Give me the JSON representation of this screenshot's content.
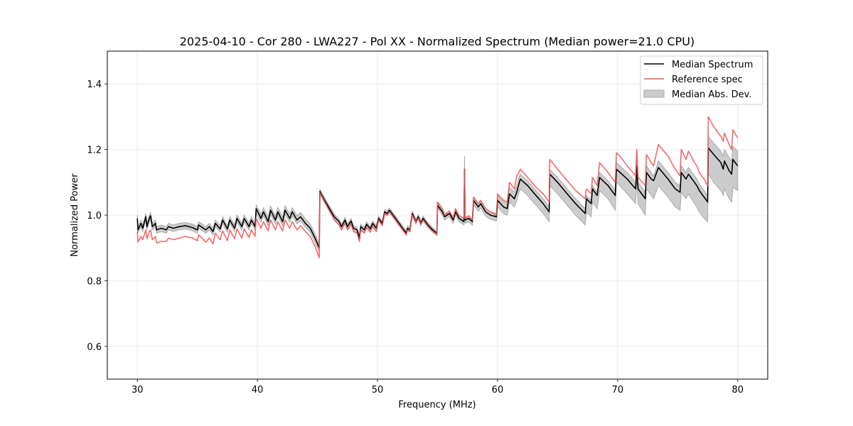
{
  "chart_data": {
    "type": "line",
    "title": "2025-04-10 - Cor 280 - LWA227 - Pol XX - Normalized Spectrum (Median power=21.0 CPU)",
    "xlabel": "Frequency (MHz)",
    "ylabel": "Normalized Power",
    "xlim": [
      27.5,
      82.5
    ],
    "ylim": [
      0.5,
      1.5
    ],
    "xticks": [
      30,
      40,
      50,
      60,
      70,
      80
    ],
    "xtick_labels": [
      "30",
      "40",
      "50",
      "60",
      "70",
      "80"
    ],
    "yticks": [
      0.6,
      0.8,
      1.0,
      1.2,
      1.4
    ],
    "ytick_labels": [
      "0.6",
      "0.8",
      "1.0",
      "1.2",
      "1.4"
    ],
    "grid": true,
    "legend_position": "top-right",
    "legend": [
      {
        "label": "Median Spectrum",
        "kind": "line",
        "color": "#000000"
      },
      {
        "label": "Reference spec",
        "kind": "line",
        "color": "#f05a5a"
      },
      {
        "label": "Median Abs. Dev.",
        "kind": "band",
        "color": "#bfbfbf"
      }
    ],
    "point_columns": [
      "frequency_mhz",
      "median",
      "reference",
      "mad_lower",
      "mad_upper"
    ],
    "points": [
      [
        30.0,
        0.99,
        0.95,
        0.98,
        1.0
      ],
      [
        30.05,
        0.955,
        0.918,
        0.945,
        0.965
      ],
      [
        30.3,
        0.975,
        0.935,
        0.965,
        0.985
      ],
      [
        30.45,
        0.96,
        0.925,
        0.95,
        0.97
      ],
      [
        30.7,
        0.995,
        0.955,
        0.985,
        1.005
      ],
      [
        30.8,
        0.965,
        0.928,
        0.955,
        0.975
      ],
      [
        31.0,
        0.99,
        0.95,
        0.98,
        1.0
      ],
      [
        31.1,
        0.998,
        0.955,
        0.988,
        1.008
      ],
      [
        31.25,
        0.965,
        0.925,
        0.955,
        0.975
      ],
      [
        31.5,
        0.975,
        0.935,
        0.965,
        0.985
      ],
      [
        31.6,
        0.955,
        0.915,
        0.945,
        0.965
      ],
      [
        32.0,
        0.96,
        0.92,
        0.95,
        0.97
      ],
      [
        32.4,
        0.955,
        0.92,
        0.945,
        0.965
      ],
      [
        32.6,
        0.965,
        0.93,
        0.955,
        0.975
      ],
      [
        33.0,
        0.96,
        0.925,
        0.95,
        0.97
      ],
      [
        33.5,
        0.965,
        0.93,
        0.955,
        0.975
      ],
      [
        34.0,
        0.968,
        0.935,
        0.958,
        0.978
      ],
      [
        34.6,
        0.962,
        0.93,
        0.952,
        0.972
      ],
      [
        35.0,
        0.955,
        0.922,
        0.945,
        0.965
      ],
      [
        35.1,
        0.97,
        0.94,
        0.96,
        0.98
      ],
      [
        35.7,
        0.955,
        0.918,
        0.945,
        0.965
      ],
      [
        36.0,
        0.965,
        0.93,
        0.955,
        0.975
      ],
      [
        36.3,
        0.95,
        0.912,
        0.94,
        0.96
      ],
      [
        36.5,
        0.975,
        0.945,
        0.965,
        0.985
      ],
      [
        36.9,
        0.958,
        0.925,
        0.948,
        0.968
      ],
      [
        37.1,
        0.985,
        0.952,
        0.975,
        0.995
      ],
      [
        37.5,
        0.958,
        0.922,
        0.948,
        0.968
      ],
      [
        37.7,
        0.985,
        0.955,
        0.975,
        0.995
      ],
      [
        38.1,
        0.96,
        0.928,
        0.95,
        0.97
      ],
      [
        38.3,
        0.99,
        0.958,
        0.98,
        1.0
      ],
      [
        38.7,
        0.965,
        0.93,
        0.955,
        0.975
      ],
      [
        38.9,
        0.99,
        0.958,
        0.98,
        1.0
      ],
      [
        39.3,
        0.965,
        0.932,
        0.955,
        0.975
      ],
      [
        39.5,
        0.985,
        0.955,
        0.975,
        0.995
      ],
      [
        39.8,
        0.965,
        0.935,
        0.955,
        0.975
      ],
      [
        39.9,
        1.02,
        0.99,
        1.005,
        1.03
      ],
      [
        40.3,
        0.99,
        0.96,
        0.978,
        1.003
      ],
      [
        40.5,
        1.01,
        0.98,
        0.998,
        1.023
      ],
      [
        40.9,
        0.98,
        0.952,
        0.968,
        0.993
      ],
      [
        41.1,
        1.015,
        0.985,
        1.003,
        1.028
      ],
      [
        41.5,
        0.985,
        0.955,
        0.973,
        0.998
      ],
      [
        41.7,
        1.01,
        0.98,
        0.998,
        1.023
      ],
      [
        42.1,
        0.98,
        0.952,
        0.968,
        0.993
      ],
      [
        42.3,
        1.015,
        0.985,
        1.003,
        1.028
      ],
      [
        42.7,
        0.99,
        0.96,
        0.978,
        1.003
      ],
      [
        42.9,
        1.01,
        0.98,
        0.998,
        1.023
      ],
      [
        43.3,
        0.985,
        0.955,
        0.973,
        0.998
      ],
      [
        43.6,
        0.995,
        0.968,
        0.983,
        1.008
      ],
      [
        44.0,
        0.975,
        0.95,
        0.963,
        0.988
      ],
      [
        44.4,
        0.96,
        0.935,
        0.948,
        0.973
      ],
      [
        44.8,
        0.93,
        0.905,
        0.918,
        0.943
      ],
      [
        45.15,
        0.9,
        0.87,
        0.888,
        0.913
      ],
      [
        45.2,
        1.072,
        1.068,
        1.065,
        1.08
      ],
      [
        45.6,
        1.045,
        1.04,
        1.037,
        1.053
      ],
      [
        46.0,
        1.02,
        1.013,
        1.012,
        1.028
      ],
      [
        46.4,
        0.995,
        0.985,
        0.987,
        1.003
      ],
      [
        46.8,
        0.98,
        0.97,
        0.972,
        0.988
      ],
      [
        47.0,
        0.965,
        0.955,
        0.957,
        0.973
      ],
      [
        47.3,
        0.985,
        0.975,
        0.977,
        0.993
      ],
      [
        47.5,
        0.965,
        0.955,
        0.957,
        0.973
      ],
      [
        47.8,
        0.982,
        0.972,
        0.974,
        0.99
      ],
      [
        48.0,
        0.96,
        0.95,
        0.952,
        0.968
      ],
      [
        48.3,
        0.955,
        0.945,
        0.947,
        0.963
      ],
      [
        48.5,
        0.93,
        0.92,
        0.922,
        0.938
      ],
      [
        48.6,
        0.965,
        0.955,
        0.957,
        0.973
      ],
      [
        48.9,
        0.955,
        0.945,
        0.947,
        0.963
      ],
      [
        49.1,
        0.972,
        0.962,
        0.964,
        0.98
      ],
      [
        49.4,
        0.958,
        0.948,
        0.95,
        0.966
      ],
      [
        49.6,
        0.975,
        0.965,
        0.967,
        0.983
      ],
      [
        49.9,
        0.96,
        0.95,
        0.952,
        0.968
      ],
      [
        50.1,
        0.99,
        0.985,
        0.983,
        0.997
      ],
      [
        50.4,
        0.975,
        0.968,
        0.968,
        0.982
      ],
      [
        50.6,
        1.01,
        1.005,
        1.003,
        1.017
      ],
      [
        50.8,
        1.005,
        1.0,
        0.998,
        1.012
      ],
      [
        51.0,
        1.015,
        1.01,
        1.008,
        1.022
      ],
      [
        51.5,
        0.99,
        0.985,
        0.983,
        0.997
      ],
      [
        52.0,
        0.965,
        0.96,
        0.958,
        0.972
      ],
      [
        52.4,
        0.945,
        0.94,
        0.938,
        0.952
      ],
      [
        52.5,
        0.96,
        0.955,
        0.953,
        0.967
      ],
      [
        52.7,
        0.955,
        0.95,
        0.948,
        0.962
      ],
      [
        52.9,
        1.005,
        1.0,
        0.998,
        1.012
      ],
      [
        53.2,
        0.98,
        0.978,
        0.973,
        0.987
      ],
      [
        53.4,
        0.995,
        0.99,
        0.988,
        1.002
      ],
      [
        53.6,
        0.975,
        0.972,
        0.968,
        0.982
      ],
      [
        53.8,
        0.99,
        0.985,
        0.983,
        0.997
      ],
      [
        54.2,
        0.97,
        0.965,
        0.963,
        0.977
      ],
      [
        54.6,
        0.955,
        0.95,
        0.948,
        0.962
      ],
      [
        54.95,
        0.945,
        0.94,
        0.938,
        0.952
      ],
      [
        55.0,
        1.03,
        1.04,
        1.022,
        1.038
      ],
      [
        55.4,
        1.01,
        1.02,
        1.0,
        1.018
      ],
      [
        55.6,
        0.995,
        1.0,
        0.985,
        1.003
      ],
      [
        56.0,
        1.005,
        1.012,
        0.995,
        1.013
      ],
      [
        56.3,
        0.985,
        0.992,
        0.975,
        0.993
      ],
      [
        56.5,
        1.01,
        1.02,
        1.0,
        1.018
      ],
      [
        56.8,
        0.99,
        0.998,
        0.98,
        0.998
      ],
      [
        57.2,
        0.98,
        0.99,
        0.97,
        0.988
      ],
      [
        57.25,
        1.14,
        1.14,
        1.13,
        1.18
      ],
      [
        57.3,
        0.985,
        0.99,
        0.975,
        0.993
      ],
      [
        57.6,
        0.99,
        0.998,
        0.98,
        0.998
      ],
      [
        57.9,
        0.98,
        0.985,
        0.97,
        0.988
      ],
      [
        58.0,
        1.045,
        1.055,
        1.032,
        1.055
      ],
      [
        58.4,
        1.025,
        1.035,
        1.012,
        1.035
      ],
      [
        58.6,
        1.035,
        1.045,
        1.022,
        1.045
      ],
      [
        59.0,
        1.01,
        1.02,
        0.997,
        1.02
      ],
      [
        59.4,
        1.0,
        1.01,
        0.987,
        1.01
      ],
      [
        59.9,
        0.995,
        1.0,
        0.982,
        1.005
      ],
      [
        60.0,
        1.045,
        1.065,
        1.025,
        1.06
      ],
      [
        60.5,
        1.025,
        1.045,
        1.005,
        1.04
      ],
      [
        60.8,
        1.02,
        1.04,
        1.0,
        1.035
      ],
      [
        61.0,
        1.065,
        1.1,
        1.04,
        1.085
      ],
      [
        61.4,
        1.05,
        1.08,
        1.025,
        1.07
      ],
      [
        61.6,
        1.07,
        1.12,
        1.045,
        1.09
      ],
      [
        61.7,
        1.085,
        1.125,
        1.06,
        1.105
      ],
      [
        61.9,
        1.11,
        1.14,
        1.08,
        1.125
      ],
      [
        62.5,
        1.09,
        1.115,
        1.06,
        1.105
      ],
      [
        63.2,
        1.06,
        1.085,
        1.03,
        1.075
      ],
      [
        63.8,
        1.035,
        1.065,
        1.005,
        1.05
      ],
      [
        64.3,
        1.01,
        1.04,
        0.98,
        1.025
      ],
      [
        64.35,
        1.125,
        1.17,
        1.09,
        1.14
      ],
      [
        65.0,
        1.1,
        1.14,
        1.065,
        1.115
      ],
      [
        65.8,
        1.065,
        1.105,
        1.03,
        1.08
      ],
      [
        66.5,
        1.035,
        1.075,
        1.0,
        1.05
      ],
      [
        67.3,
        1.005,
        1.05,
        0.97,
        1.02
      ],
      [
        67.4,
        1.05,
        1.08,
        1.01,
        1.06
      ],
      [
        67.8,
        1.035,
        1.065,
        0.995,
        1.045
      ],
      [
        67.9,
        1.08,
        1.115,
        1.04,
        1.09
      ],
      [
        68.3,
        1.06,
        1.09,
        1.02,
        1.07
      ],
      [
        68.5,
        1.115,
        1.16,
        1.075,
        1.13
      ],
      [
        69.2,
        1.09,
        1.13,
        1.05,
        1.105
      ],
      [
        69.8,
        1.06,
        1.1,
        1.015,
        1.075
      ],
      [
        69.9,
        1.14,
        1.19,
        1.1,
        1.16
      ],
      [
        70.2,
        1.13,
        1.18,
        1.09,
        1.15
      ],
      [
        70.8,
        1.11,
        1.15,
        1.065,
        1.13
      ],
      [
        71.5,
        1.08,
        1.12,
        1.035,
        1.1
      ],
      [
        71.6,
        1.15,
        1.2,
        1.11,
        1.165
      ],
      [
        71.7,
        1.08,
        1.115,
        1.035,
        1.1
      ],
      [
        72.3,
        1.05,
        1.09,
        1.0,
        1.07
      ],
      [
        72.4,
        1.13,
        1.185,
        1.08,
        1.15
      ],
      [
        72.8,
        1.11,
        1.16,
        1.06,
        1.13
      ],
      [
        73.0,
        1.105,
        1.15,
        1.05,
        1.12
      ],
      [
        73.4,
        1.145,
        1.215,
        1.09,
        1.165
      ],
      [
        74.2,
        1.11,
        1.18,
        1.055,
        1.13
      ],
      [
        74.8,
        1.08,
        1.14,
        1.025,
        1.1
      ],
      [
        75.2,
        1.07,
        1.12,
        1.015,
        1.09
      ],
      [
        75.3,
        1.13,
        1.2,
        1.07,
        1.15
      ],
      [
        75.7,
        1.11,
        1.17,
        1.05,
        1.13
      ],
      [
        75.9,
        1.125,
        1.195,
        1.065,
        1.145
      ],
      [
        76.4,
        1.1,
        1.16,
        1.035,
        1.12
      ],
      [
        76.6,
        1.09,
        1.15,
        1.025,
        1.11
      ],
      [
        76.8,
        1.075,
        1.13,
        1.01,
        1.095
      ],
      [
        77.2,
        1.055,
        1.11,
        0.99,
        1.075
      ],
      [
        77.5,
        1.04,
        1.09,
        0.98,
        1.06
      ],
      [
        77.55,
        1.205,
        1.3,
        1.125,
        1.24
      ],
      [
        78.0,
        1.185,
        1.27,
        1.1,
        1.22
      ],
      [
        78.6,
        1.16,
        1.24,
        1.075,
        1.195
      ],
      [
        78.8,
        1.14,
        1.225,
        1.06,
        1.18
      ],
      [
        78.9,
        1.165,
        1.25,
        1.08,
        1.2
      ],
      [
        79.3,
        1.135,
        1.215,
        1.05,
        1.175
      ],
      [
        79.5,
        1.125,
        1.2,
        1.04,
        1.165
      ],
      [
        79.6,
        1.17,
        1.26,
        1.085,
        1.21
      ],
      [
        80.0,
        1.15,
        1.235,
        1.075,
        1.195
      ]
    ]
  }
}
